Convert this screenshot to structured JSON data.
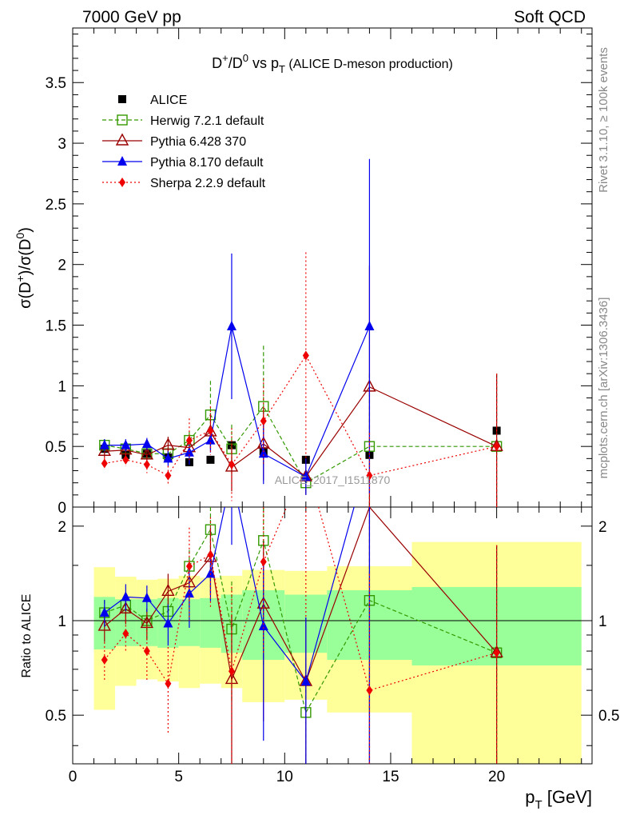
{
  "header": {
    "left": "7000 GeV pp",
    "right": "Soft QCD"
  },
  "side_labels": {
    "rivet": "Rivet 3.1.10, ≥ 100k events",
    "mcplots": "mcplots.cern.ch [arXiv:1306.3436]"
  },
  "chart_data": {
    "type": "scatter",
    "title_parts": {
      "a": "D",
      "a_sup": "+",
      "b": "/D",
      "b_sup": "0",
      "c": " vs p",
      "c_sub": "T",
      "d": " (ALICE D-meson production)"
    },
    "watermark": "ALICE_2017_I1511870",
    "xlabel_main": "p",
    "xlabel_sub": "T",
    "xlabel_unit": " [GeV]",
    "ylabel_parts": {
      "a": "σ(D",
      "a_sup": "+",
      "b": ")/σ(D",
      "b_sup": "0",
      "c": ")"
    },
    "ratio_ylabel": "Ratio to ALICE",
    "xlim": [
      0,
      24.5
    ],
    "ylim": [
      0,
      3.95
    ],
    "ratio_ylim": [
      0.35,
      2.3
    ],
    "x_ticks": [
      0,
      5,
      10,
      15,
      20
    ],
    "x_tick_labels": [
      "0",
      "5",
      "10",
      "15",
      "20"
    ],
    "y_ticks": [
      0,
      0.5,
      1,
      1.5,
      2,
      2.5,
      3,
      3.5
    ],
    "y_tick_labels": [
      "0",
      "0.5",
      "1",
      "1.5",
      "2",
      "2.5",
      "3",
      "3.5"
    ],
    "ratio_ticks": [
      0.5,
      1,
      2
    ],
    "ratio_tick_labels": [
      "0.5",
      "1",
      "2"
    ],
    "bins": [
      [
        1,
        2
      ],
      [
        2,
        3
      ],
      [
        3,
        4
      ],
      [
        4,
        5
      ],
      [
        5,
        6
      ],
      [
        6,
        7
      ],
      [
        7,
        8
      ],
      [
        8,
        10
      ],
      [
        10,
        12
      ],
      [
        12,
        16
      ],
      [
        16,
        24
      ]
    ],
    "x": [
      1.5,
      2.5,
      3.5,
      4.5,
      5.5,
      6.5,
      7.5,
      9,
      11,
      14,
      20
    ],
    "data": {
      "name": "ALICE",
      "values": [
        0.48,
        0.43,
        0.44,
        0.41,
        0.37,
        0.39,
        0.51,
        0.46,
        0.39,
        0.43,
        0.63
      ],
      "band_inner": [
        0.19,
        0.17,
        0.17,
        0.18,
        0.17,
        0.18,
        0.21,
        0.25,
        0.21,
        0.25,
        0.28
      ],
      "band_outer": [
        0.48,
        0.38,
        0.35,
        0.36,
        0.39,
        0.37,
        0.39,
        0.45,
        0.44,
        0.49,
        0.78
      ]
    },
    "series": [
      {
        "name": "Herwig 7.2.1 default",
        "color": "#339900",
        "marker": "open-square",
        "dash": "5,3",
        "values": [
          0.51,
          0.48,
          0.44,
          0.44,
          0.55,
          0.76,
          0.48,
          0.83,
          0.2,
          0.5,
          0.5
        ],
        "errors": [
          0.05,
          0.04,
          0.04,
          0.05,
          0.07,
          0.28,
          0.2,
          0.5,
          0.1,
          0.6,
          0.6
        ],
        "ratio": [
          1.06,
          1.12,
          1.0,
          1.07,
          1.49,
          1.95,
          0.94,
          1.8,
          0.51,
          1.16,
          0.79
        ]
      },
      {
        "name": "Pythia 6.428 370",
        "color": "#990000",
        "marker": "open-triangle",
        "dash": "",
        "values": [
          0.46,
          0.47,
          0.43,
          0.51,
          0.49,
          0.62,
          0.33,
          0.52,
          0.25,
          0.99,
          0.5
        ],
        "errors": [
          0.05,
          0.05,
          0.05,
          0.07,
          0.08,
          0.15,
          0.2,
          0.3,
          0.15,
          1.0,
          0.6
        ],
        "ratio": [
          0.96,
          1.09,
          0.98,
          1.24,
          1.32,
          1.59,
          0.65,
          1.13,
          0.64,
          2.3,
          0.79
        ]
      },
      {
        "name": "Pythia 8.170 default",
        "color": "#0000ee",
        "marker": "filled-triangle",
        "dash": "",
        "values": [
          0.51,
          0.51,
          0.52,
          0.4,
          0.45,
          0.55,
          1.49,
          0.44,
          0.25,
          1.49
        ],
        "errors": [
          0.05,
          0.05,
          0.05,
          0.06,
          0.1,
          0.1,
          0.6,
          0.25,
          0.15,
          1.38
        ],
        "ratio": [
          1.06,
          1.19,
          1.18,
          0.98,
          1.22,
          1.41,
          2.92,
          0.96,
          0.64,
          3.46
        ]
      },
      {
        "name": "Sherpa 2.2.9 default",
        "color": "#ee0000",
        "marker": "filled-diamond",
        "dash": "2,3",
        "values": [
          0.36,
          0.39,
          0.35,
          0.26,
          0.55,
          0.63,
          0.35,
          0.71,
          1.25,
          0.26,
          0.5
        ],
        "errors": [
          0.05,
          0.05,
          0.07,
          0.08,
          0.18,
          0.2,
          0.3,
          0.35,
          0.85,
          0.35,
          0.6
        ],
        "ratio": [
          0.75,
          0.91,
          0.8,
          0.63,
          1.49,
          1.62,
          0.69,
          1.54,
          3.21,
          0.6,
          0.79
        ]
      }
    ]
  }
}
